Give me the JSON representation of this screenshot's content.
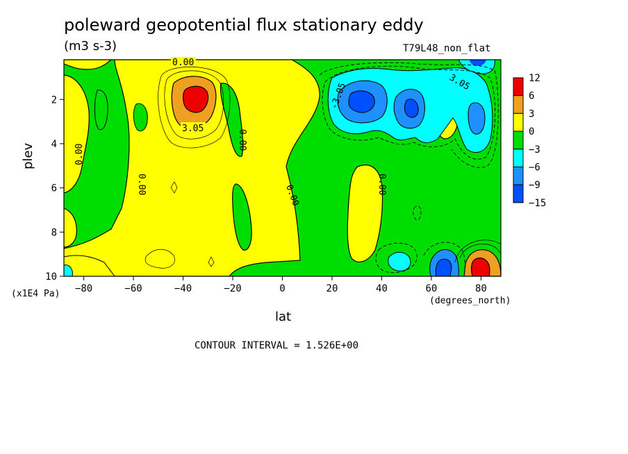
{
  "title": "poleward geopotential flux stationary eddy",
  "units": "(m3 s-3)",
  "dataset": "T79L48_non_flat",
  "footer": "CONTOUR INTERVAL = 1.526E+00",
  "chart_data": {
    "type": "heatmap",
    "title": "poleward geopotential flux stationary eddy",
    "xlabel": "lat",
    "x_units": "(degrees_north)",
    "ylabel": "plev",
    "y_units": "(x1E4 Pa)",
    "xlim": [
      -88,
      88
    ],
    "ylim": [
      10,
      0.2
    ],
    "x_ticks": [
      -80,
      -60,
      -40,
      -20,
      0,
      20,
      40,
      60,
      80
    ],
    "y_ticks": [
      2,
      4,
      6,
      8,
      10
    ],
    "colorbar": {
      "labels": [
        "12",
        "6",
        "3",
        "0",
        "−3",
        "−6",
        "−9",
        "−15"
      ],
      "colors": [
        "#ee0000",
        "#f0a020",
        "#ffff00",
        "#00dd00",
        "#00ffff",
        "#1e90ff",
        "#0050ff"
      ]
    },
    "contour_labels": [
      "0.00",
      "3.05",
      "-3.05"
    ],
    "contour_interval": 1.526,
    "features": [
      {
        "name": "positive max",
        "lat": -36,
        "plev": 2.0,
        "value": 12
      },
      {
        "name": "negative min",
        "lat": 32,
        "plev": 2.0,
        "value": -12
      },
      {
        "name": "negative min",
        "lat": 54,
        "plev": 2.4,
        "value": -9
      },
      {
        "name": "negative min",
        "lat": 66,
        "plev": 3.0,
        "value": -6
      },
      {
        "name": "positive max",
        "lat": 80,
        "plev": 9.6,
        "value": 12
      },
      {
        "name": "negative min",
        "lat": 66,
        "plev": 9.6,
        "value": -9
      }
    ]
  }
}
